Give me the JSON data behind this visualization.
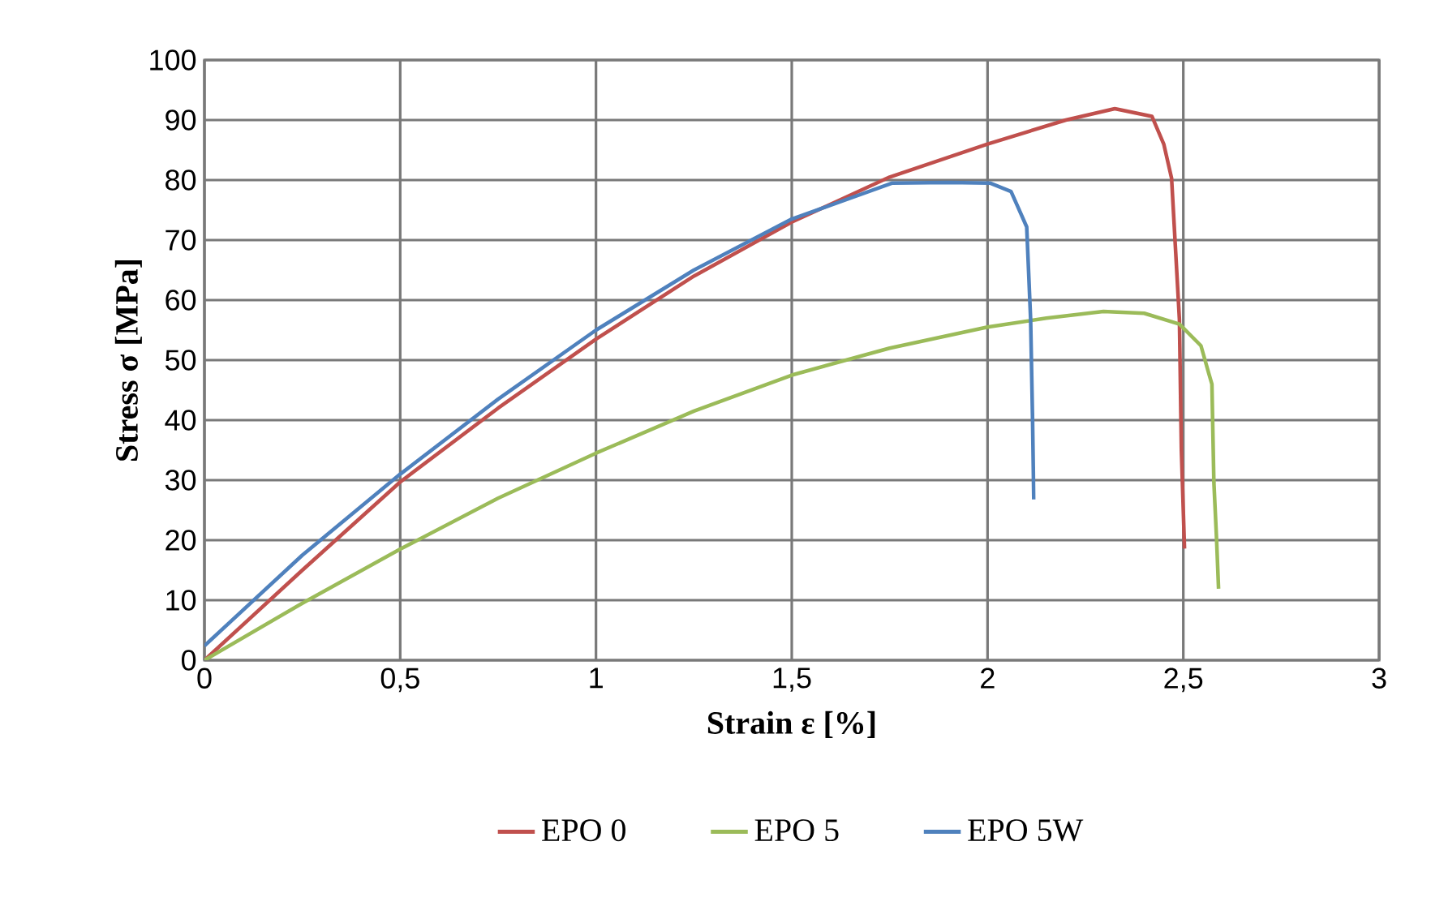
{
  "chart_data": {
    "type": "line",
    "xlabel": "Strain ε [%]",
    "ylabel": "Stress σ  [MPa]",
    "xlim": [
      0,
      3
    ],
    "ylim": [
      0,
      100
    ],
    "xticks": [
      0,
      {
        "value": 0.5,
        "label": "0,5"
      },
      1,
      {
        "value": 1.5,
        "label": "1,5"
      },
      2,
      {
        "value": 2.5,
        "label": "2,5"
      },
      3
    ],
    "yticks": [
      0,
      10,
      20,
      30,
      40,
      50,
      60,
      70,
      80,
      90,
      100
    ],
    "grid": true,
    "legend": "bottom",
    "marker": "none",
    "line_style": "solid",
    "series": [
      {
        "name": "EPO 0",
        "color": "#c0504d",
        "x": [
          0,
          0.25,
          0.5,
          0.75,
          1.0,
          1.25,
          1.5,
          1.75,
          2.0,
          2.2,
          2.325,
          2.42,
          2.45,
          2.47,
          2.49,
          2.495,
          2.503
        ],
        "values": [
          0,
          15,
          29.7,
          42,
          53.5,
          64,
          73,
          80.5,
          86,
          90,
          91.9,
          90.6,
          86,
          80.3,
          56.8,
          35,
          18.6
        ]
      },
      {
        "name": "EPO 5",
        "color": "#9bbb59",
        "x": [
          0,
          0.25,
          0.5,
          0.75,
          1.0,
          1.25,
          1.5,
          1.75,
          2.0,
          2.15,
          2.296,
          2.4,
          2.49,
          2.545,
          2.565,
          2.573,
          2.578,
          2.585,
          2.59
        ],
        "values": [
          0,
          9.5,
          18.5,
          27,
          34.5,
          41.5,
          47.5,
          52,
          55.5,
          57,
          58.1,
          57.8,
          56,
          52.4,
          47.8,
          46,
          29.7,
          20,
          11.9
        ]
      },
      {
        "name": "EPO 5W",
        "color": "#4f81bd",
        "x": [
          0,
          0.25,
          0.5,
          0.75,
          1.0,
          1.25,
          1.5,
          1.757,
          1.9,
          2.006,
          2.06,
          2.1,
          2.11,
          2.115,
          2.118
        ],
        "values": [
          2.4,
          17.5,
          31,
          43.5,
          55,
          65,
          73.5,
          79.5,
          79.6,
          79.5,
          78.1,
          72.2,
          56.8,
          40,
          26.8
        ]
      }
    ]
  }
}
